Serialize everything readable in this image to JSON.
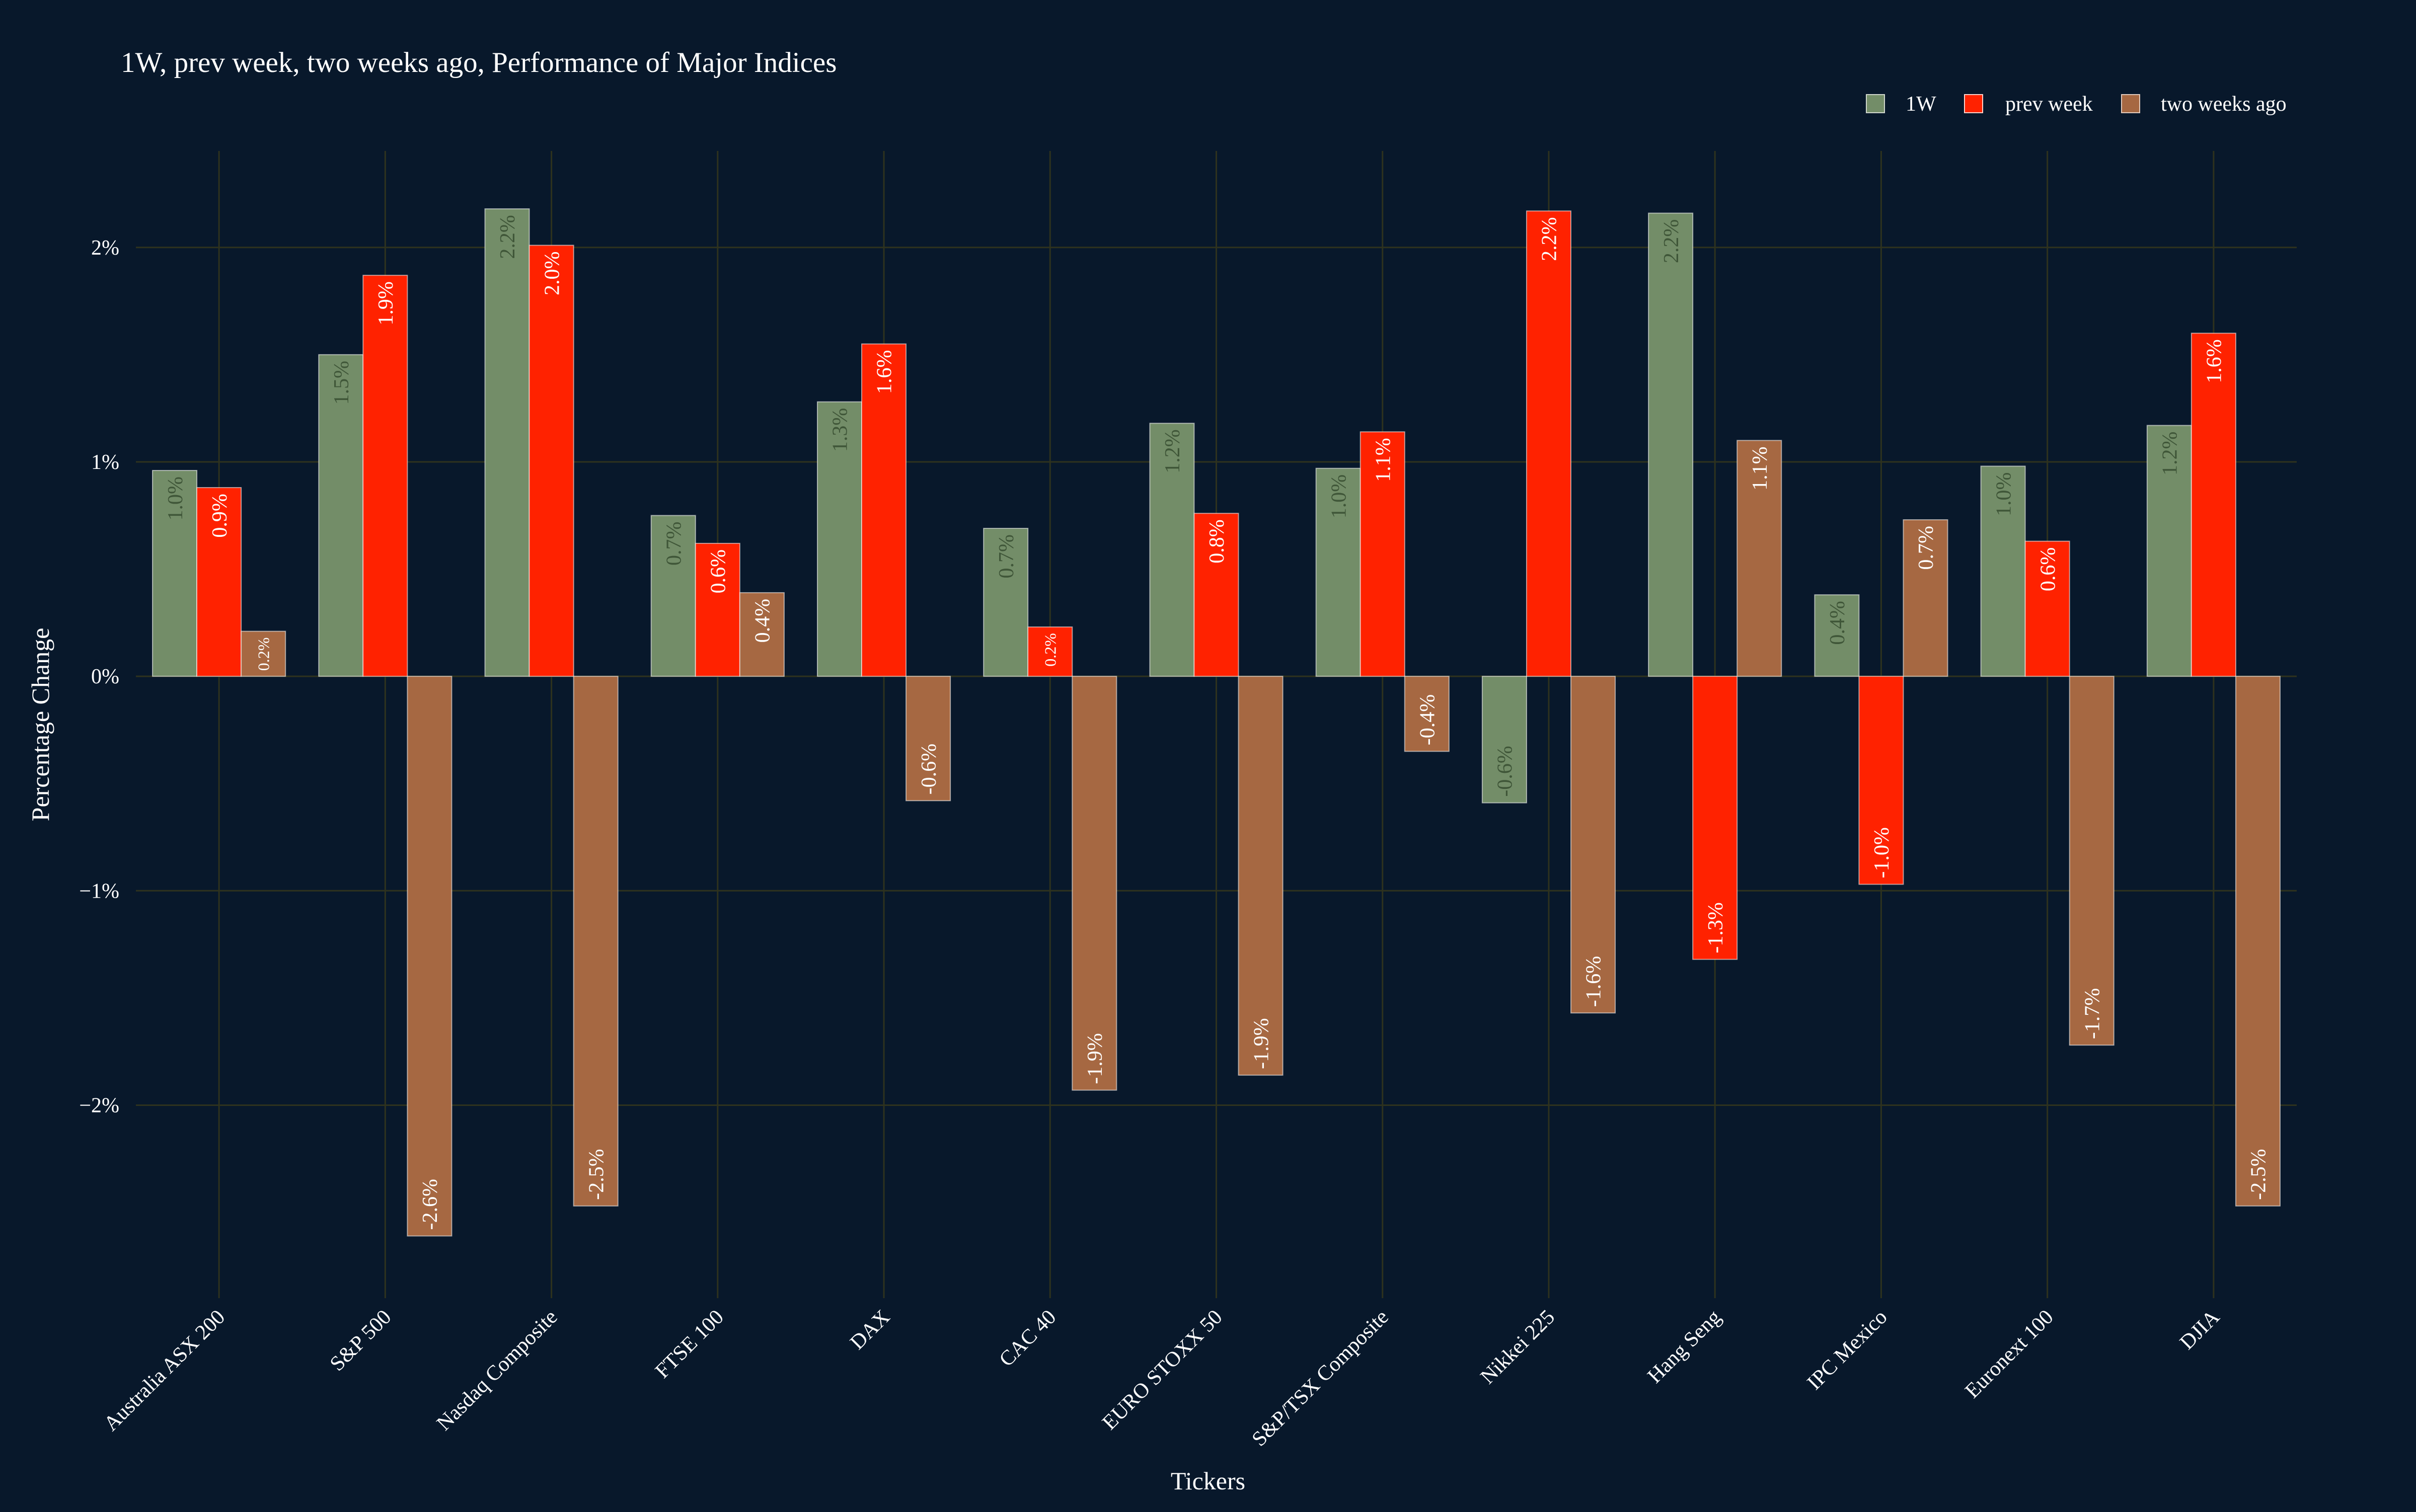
{
  "chart_data": {
    "type": "bar",
    "title": "1W, prev week, two weeks ago, Performance of Major Indices",
    "xlabel": "Tickers",
    "ylabel": "Percentage Change",
    "ylim": [
      -2.9,
      2.45
    ],
    "yticks": [
      {
        "value": -2,
        "label": "−2%"
      },
      {
        "value": -1,
        "label": "−1%"
      },
      {
        "value": 0,
        "label": "0%"
      },
      {
        "value": 1,
        "label": "1%"
      },
      {
        "value": 2,
        "label": "2%"
      }
    ],
    "grid": true,
    "legend_position": "top-right",
    "categories": [
      "Australia ASX 200",
      "S&P 500",
      "Nasdaq Composite",
      "FTSE 100",
      "DAX",
      "CAC 40",
      "EURO STOXX 50",
      "S&P/TSX Composite",
      "Nikkei 225",
      "Hang Seng",
      "IPC Mexico",
      "Euronext 100",
      "DJIA"
    ],
    "series": [
      {
        "name": "1W",
        "color": "#738d68",
        "label_color": "#3f5638",
        "values": [
          0.96,
          1.5,
          2.18,
          0.75,
          1.28,
          0.69,
          1.18,
          0.97,
          -0.59,
          2.16,
          0.38,
          0.98,
          1.17
        ],
        "labels": [
          "1.0%",
          "1.5%",
          "2.2%",
          "0.7%",
          "1.3%",
          "0.7%",
          "1.2%",
          "1.0%",
          "-0.6%",
          "2.2%",
          "0.4%",
          "1.0%",
          "1.2%"
        ]
      },
      {
        "name": "prev week",
        "color": "#ff2200",
        "label_color": "#ffffff",
        "values": [
          0.88,
          1.87,
          2.01,
          0.62,
          1.55,
          0.23,
          0.76,
          1.14,
          2.17,
          -1.32,
          -0.97,
          0.63,
          1.6
        ],
        "labels": [
          "0.9%",
          "1.9%",
          "2.0%",
          "0.6%",
          "1.6%",
          "0.2%",
          "0.8%",
          "1.1%",
          "2.2%",
          "-1.3%",
          "-1.0%",
          "0.6%",
          "1.6%"
        ]
      },
      {
        "name": "two weeks ago",
        "color": "#a66842",
        "label_color": "#ffffff",
        "values": [
          0.21,
          -2.61,
          -2.47,
          0.39,
          -0.58,
          -1.93,
          -1.86,
          -0.35,
          -1.57,
          1.1,
          0.73,
          -1.72,
          -2.47
        ],
        "labels": [
          "0.2%",
          "-2.6%",
          "-2.5%",
          "0.4%",
          "-0.6%",
          "-1.9%",
          "-1.9%",
          "-0.4%",
          "-1.6%",
          "1.1%",
          "0.7%",
          "-1.7%",
          "-2.5%"
        ]
      }
    ]
  },
  "colors": {
    "background": "#08182b",
    "grid": "#2e321e",
    "text": "#ffffff"
  }
}
